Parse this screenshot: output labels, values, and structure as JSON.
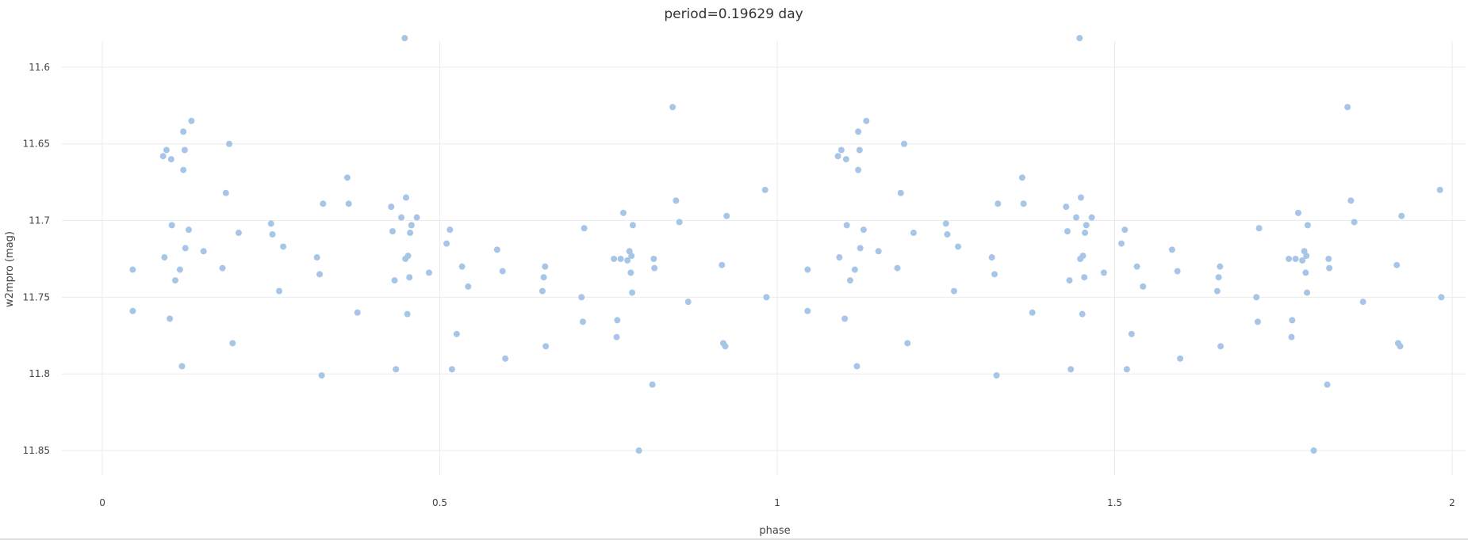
{
  "chart_data": {
    "type": "scatter",
    "title": "period=0.19629 day",
    "xlabel": "phase",
    "ylabel": "w2mpro (mag)",
    "xlim": [
      -0.06,
      2.02
    ],
    "ylim": [
      11.583,
      11.866
    ],
    "y_reversed": true,
    "grid": true,
    "marker_color": "#a7c5e6",
    "x_ticks": [
      {
        "value": 0,
        "label": "0"
      },
      {
        "value": 0.5,
        "label": "0.5"
      },
      {
        "value": 1,
        "label": "1"
      },
      {
        "value": 1.5,
        "label": "1.5"
      },
      {
        "value": 2,
        "label": "2"
      }
    ],
    "y_ticks": [
      {
        "value": 11.6,
        "label": "11.6"
      },
      {
        "value": 11.65,
        "label": "11.65"
      },
      {
        "value": 11.7,
        "label": "11.7"
      },
      {
        "value": 11.75,
        "label": "11.75"
      },
      {
        "value": 11.8,
        "label": "11.8"
      },
      {
        "value": 11.85,
        "label": "11.85"
      }
    ],
    "series": [
      {
        "points": [
          [
            0.045,
            11.732
          ],
          [
            0.045,
            11.759
          ],
          [
            0.09,
            11.658
          ],
          [
            0.092,
            11.724
          ],
          [
            0.095,
            11.654
          ],
          [
            0.1,
            11.764
          ],
          [
            0.102,
            11.66
          ],
          [
            0.103,
            11.703
          ],
          [
            0.108,
            11.739
          ],
          [
            0.115,
            11.732
          ],
          [
            0.118,
            11.795
          ],
          [
            0.12,
            11.642
          ],
          [
            0.12,
            11.667
          ],
          [
            0.122,
            11.654
          ],
          [
            0.123,
            11.718
          ],
          [
            0.128,
            11.706
          ],
          [
            0.132,
            11.635
          ],
          [
            0.15,
            11.72
          ],
          [
            0.178,
            11.731
          ],
          [
            0.183,
            11.682
          ],
          [
            0.188,
            11.65
          ],
          [
            0.193,
            11.78
          ],
          [
            0.202,
            11.708
          ],
          [
            0.25,
            11.702
          ],
          [
            0.252,
            11.709
          ],
          [
            0.262,
            11.746
          ],
          [
            0.268,
            11.717
          ],
          [
            0.318,
            11.724
          ],
          [
            0.322,
            11.735
          ],
          [
            0.325,
            11.801
          ],
          [
            0.327,
            11.689
          ],
          [
            0.363,
            11.672
          ],
          [
            0.365,
            11.689
          ],
          [
            0.378,
            11.76
          ],
          [
            0.428,
            11.691
          ],
          [
            0.43,
            11.707
          ],
          [
            0.433,
            11.739
          ],
          [
            0.435,
            11.797
          ],
          [
            0.443,
            11.698
          ],
          [
            0.448,
            11.581
          ],
          [
            0.449,
            11.725
          ],
          [
            0.45,
            11.685
          ],
          [
            0.452,
            11.761
          ],
          [
            0.453,
            11.723
          ],
          [
            0.455,
            11.737
          ],
          [
            0.456,
            11.708
          ],
          [
            0.458,
            11.703
          ],
          [
            0.466,
            11.698
          ],
          [
            0.484,
            11.734
          ],
          [
            0.51,
            11.715
          ],
          [
            0.515,
            11.706
          ],
          [
            0.518,
            11.797
          ],
          [
            0.525,
            11.774
          ],
          [
            0.533,
            11.73
          ],
          [
            0.542,
            11.743
          ],
          [
            0.585,
            11.719
          ],
          [
            0.593,
            11.733
          ],
          [
            0.597,
            11.79
          ],
          [
            0.652,
            11.746
          ],
          [
            0.654,
            11.737
          ],
          [
            0.656,
            11.73
          ],
          [
            0.657,
            11.782
          ],
          [
            0.71,
            11.75
          ],
          [
            0.712,
            11.766
          ],
          [
            0.714,
            11.705
          ],
          [
            0.758,
            11.725
          ],
          [
            0.762,
            11.776
          ],
          [
            0.763,
            11.765
          ],
          [
            0.768,
            11.725
          ],
          [
            0.772,
            11.695
          ],
          [
            0.778,
            11.726
          ],
          [
            0.781,
            11.72
          ],
          [
            0.783,
            11.734
          ],
          [
            0.784,
            11.723
          ],
          [
            0.785,
            11.747
          ],
          [
            0.786,
            11.703
          ],
          [
            0.795,
            11.85
          ],
          [
            0.845,
            11.626
          ],
          [
            0.85,
            11.687
          ],
          [
            0.855,
            11.701
          ],
          [
            0.815,
            11.807
          ],
          [
            0.817,
            11.725
          ],
          [
            0.818,
            11.731
          ],
          [
            0.868,
            11.753
          ],
          [
            0.918,
            11.729
          ],
          [
            0.92,
            11.78
          ],
          [
            0.923,
            11.782
          ],
          [
            0.925,
            11.697
          ],
          [
            0.982,
            11.68
          ],
          [
            0.984,
            11.75
          ],
          [
            1.045,
            11.732
          ],
          [
            1.045,
            11.759
          ],
          [
            1.09,
            11.658
          ],
          [
            1.092,
            11.724
          ],
          [
            1.095,
            11.654
          ],
          [
            1.1,
            11.764
          ],
          [
            1.102,
            11.66
          ],
          [
            1.103,
            11.703
          ],
          [
            1.108,
            11.739
          ],
          [
            1.115,
            11.732
          ],
          [
            1.118,
            11.795
          ],
          [
            1.12,
            11.642
          ],
          [
            1.12,
            11.667
          ],
          [
            1.122,
            11.654
          ],
          [
            1.123,
            11.718
          ],
          [
            1.128,
            11.706
          ],
          [
            1.132,
            11.635
          ],
          [
            1.15,
            11.72
          ],
          [
            1.178,
            11.731
          ],
          [
            1.183,
            11.682
          ],
          [
            1.188,
            11.65
          ],
          [
            1.193,
            11.78
          ],
          [
            1.202,
            11.708
          ],
          [
            1.25,
            11.702
          ],
          [
            1.252,
            11.709
          ],
          [
            1.262,
            11.746
          ],
          [
            1.268,
            11.717
          ],
          [
            1.318,
            11.724
          ],
          [
            1.322,
            11.735
          ],
          [
            1.325,
            11.801
          ],
          [
            1.327,
            11.689
          ],
          [
            1.363,
            11.672
          ],
          [
            1.365,
            11.689
          ],
          [
            1.378,
            11.76
          ],
          [
            1.428,
            11.691
          ],
          [
            1.43,
            11.707
          ],
          [
            1.433,
            11.739
          ],
          [
            1.435,
            11.797
          ],
          [
            1.443,
            11.698
          ],
          [
            1.448,
            11.581
          ],
          [
            1.449,
            11.725
          ],
          [
            1.45,
            11.685
          ],
          [
            1.452,
            11.761
          ],
          [
            1.453,
            11.723
          ],
          [
            1.455,
            11.737
          ],
          [
            1.456,
            11.708
          ],
          [
            1.458,
            11.703
          ],
          [
            1.466,
            11.698
          ],
          [
            1.484,
            11.734
          ],
          [
            1.51,
            11.715
          ],
          [
            1.515,
            11.706
          ],
          [
            1.518,
            11.797
          ],
          [
            1.525,
            11.774
          ],
          [
            1.533,
            11.73
          ],
          [
            1.542,
            11.743
          ],
          [
            1.585,
            11.719
          ],
          [
            1.593,
            11.733
          ],
          [
            1.597,
            11.79
          ],
          [
            1.652,
            11.746
          ],
          [
            1.654,
            11.737
          ],
          [
            1.656,
            11.73
          ],
          [
            1.657,
            11.782
          ],
          [
            1.71,
            11.75
          ],
          [
            1.712,
            11.766
          ],
          [
            1.714,
            11.705
          ],
          [
            1.758,
            11.725
          ],
          [
            1.762,
            11.776
          ],
          [
            1.763,
            11.765
          ],
          [
            1.768,
            11.725
          ],
          [
            1.772,
            11.695
          ],
          [
            1.778,
            11.726
          ],
          [
            1.781,
            11.72
          ],
          [
            1.783,
            11.734
          ],
          [
            1.784,
            11.723
          ],
          [
            1.785,
            11.747
          ],
          [
            1.786,
            11.703
          ],
          [
            1.795,
            11.85
          ],
          [
            1.845,
            11.626
          ],
          [
            1.85,
            11.687
          ],
          [
            1.855,
            11.701
          ],
          [
            1.815,
            11.807
          ],
          [
            1.817,
            11.725
          ],
          [
            1.818,
            11.731
          ],
          [
            1.868,
            11.753
          ],
          [
            1.918,
            11.729
          ],
          [
            1.92,
            11.78
          ],
          [
            1.923,
            11.782
          ],
          [
            1.925,
            11.697
          ],
          [
            1.982,
            11.68
          ],
          [
            1.984,
            11.75
          ]
        ]
      }
    ]
  }
}
